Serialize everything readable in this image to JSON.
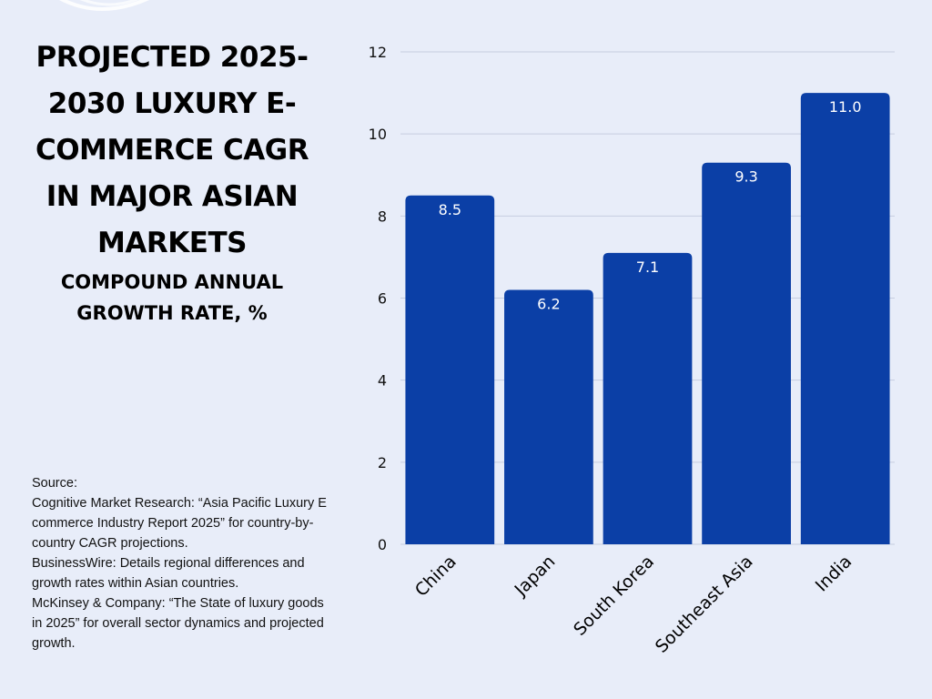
{
  "colors": {
    "background": "#e8edf9",
    "bar": "#0b3fa6",
    "grid": "#c6cde0",
    "bar_label": "#ffffff",
    "text": "#000000"
  },
  "source": {
    "heading": "Source:",
    "lines": [
      "Cognitive Market Research: “Asia Pacific Luxury E commerce Industry Report 2025” for country-by-country CAGR projections.",
      "BusinessWire: Details regional differences and growth rates within Asian countries.",
      "McKinsey & Company: “The State of luxury goods in 2025” for overall sector dynamics and projected growth."
    ]
  },
  "chart_data": {
    "type": "bar",
    "title": "PROJECTED 2025-2030 LUXURY E-COMMERCE CAGR IN MAJOR ASIAN MARKETS",
    "subtitle": "COMPOUND ANNUAL GROWTH RATE, %",
    "xlabel": "",
    "ylabel": "",
    "categories": [
      "China",
      "Japan",
      "South Korea",
      "Southeast Asia",
      "India"
    ],
    "values": [
      8.5,
      6.2,
      7.1,
      9.3,
      11.0
    ],
    "value_labels": [
      "8.5",
      "6.2",
      "7.1",
      "9.3",
      "11.0"
    ],
    "ylim": [
      0,
      12
    ],
    "yticks": [
      0,
      2,
      4,
      6,
      8,
      10,
      12
    ],
    "grid": true,
    "legend": "none"
  }
}
